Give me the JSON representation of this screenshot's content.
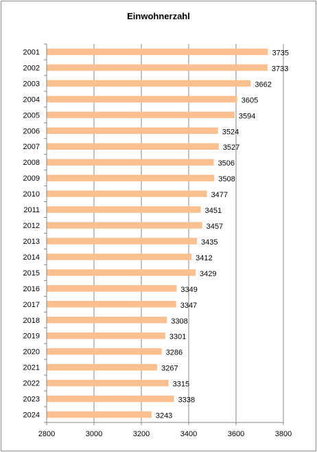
{
  "chart_data": {
    "type": "bar",
    "orientation": "horizontal",
    "title": "Einwohnerzahl",
    "xlabel": "",
    "ylabel": "",
    "categories": [
      "2001",
      "2002",
      "2003",
      "2004",
      "2005",
      "2006",
      "2007",
      "2008",
      "2009",
      "2010",
      "2011",
      "2012",
      "2013",
      "2014",
      "2015",
      "2016",
      "2017",
      "2018",
      "2019",
      "2020",
      "2021",
      "2022",
      "2023",
      "2024"
    ],
    "values": [
      3735,
      3733,
      3662,
      3605,
      3594,
      3524,
      3527,
      3506,
      3508,
      3477,
      3451,
      3457,
      3435,
      3412,
      3429,
      3349,
      3347,
      3308,
      3301,
      3286,
      3267,
      3315,
      3338,
      3243
    ],
    "xlim": [
      2800,
      3800
    ],
    "xticks": [
      "2800",
      "3000",
      "3200",
      "3400",
      "3600",
      "3800"
    ],
    "grid": true,
    "legend": "none",
    "bar_color": "#fac090",
    "gridline_color": "#868686"
  }
}
